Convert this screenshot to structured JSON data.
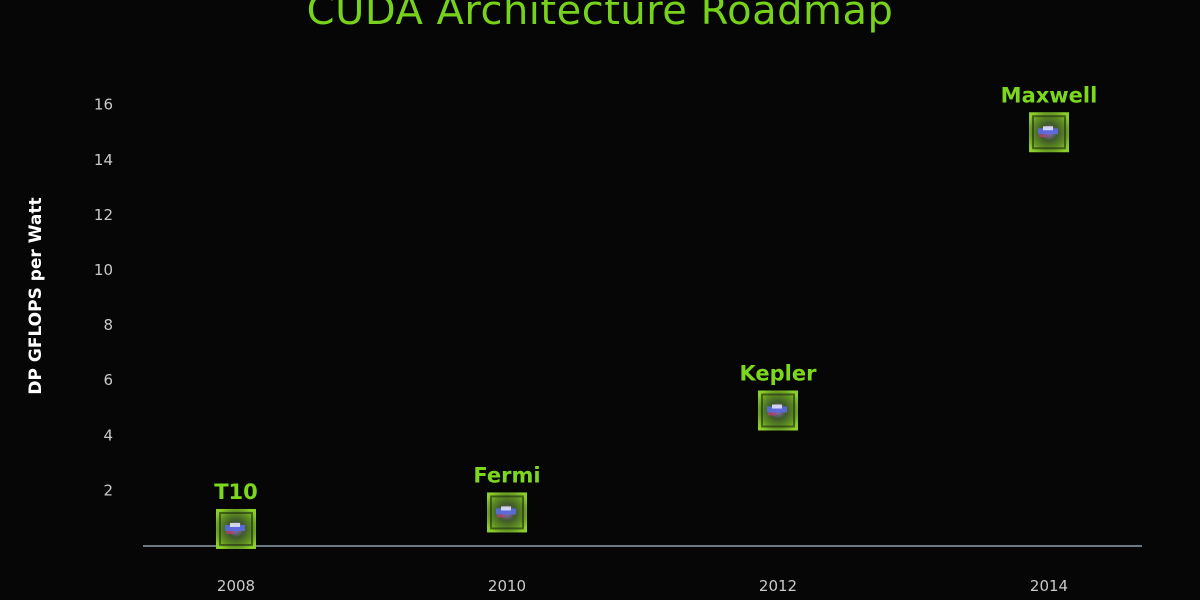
{
  "chart_data": {
    "type": "scatter",
    "title": "CUDA Architecture Roadmap",
    "xlabel": "",
    "ylabel": "DP GFLOPS per Watt",
    "x_ticks": [
      "2008",
      "2010",
      "2012",
      "2014"
    ],
    "y_ticks": [
      2,
      4,
      6,
      8,
      10,
      12,
      14,
      16
    ],
    "ylim": [
      0,
      16.5
    ],
    "xlim": [
      2007.2,
      2014.8
    ],
    "grid": false,
    "points": [
      {
        "label": "T10",
        "x": 2008,
        "y": 0.6
      },
      {
        "label": "Fermi",
        "x": 2010,
        "y": 1.2
      },
      {
        "label": "Kepler",
        "x": 2012,
        "y": 4.9
      },
      {
        "label": "Maxwell",
        "x": 2014,
        "y": 15.0
      }
    ]
  },
  "colors": {
    "background": "#060606",
    "title": "#76d21a",
    "point_label": "#7bd81c",
    "axis": "#6a7a80",
    "tick": "#c9c9c9",
    "ylabel": "#ffffff"
  },
  "marker_icon": "gpu-chip-icon"
}
